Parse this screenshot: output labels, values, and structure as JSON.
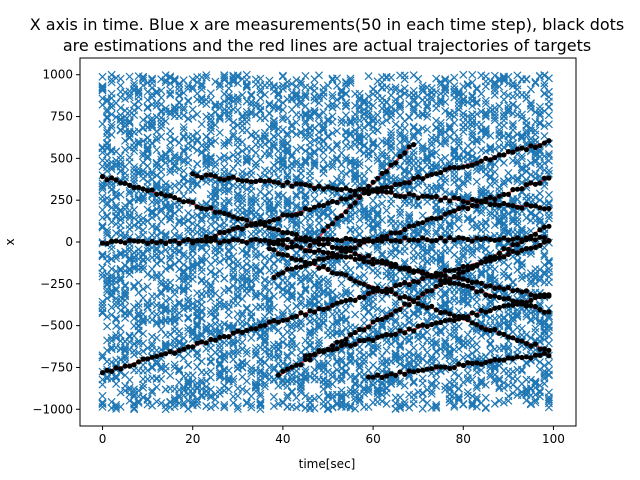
{
  "chart_data": {
    "type": "scatter",
    "title_line1": "X axis in time. Blue x are measurements(50 in each time step), black dots",
    "title_line2": "are estimations and the red lines are actual trajectories of targets",
    "xlabel": "time[sec]",
    "ylabel": "x",
    "xlim": [
      -5,
      105
    ],
    "ylim": [
      -1100,
      1100
    ],
    "x_ticks": [
      0,
      20,
      40,
      60,
      80,
      100
    ],
    "y_ticks": [
      -1000,
      -750,
      -500,
      -250,
      0,
      250,
      500,
      750,
      1000
    ],
    "grid": false,
    "legend": "none",
    "colors": {
      "measurements": "#1f77b4",
      "estimations": "#000000",
      "trajectories": "#d62728"
    },
    "measurements": {
      "name": "measurements",
      "marker": "x",
      "per_time_step": 50,
      "time_range": [
        0,
        99
      ],
      "x_range": [
        -1000,
        1000
      ]
    },
    "series": [
      {
        "x": [
          0,
          99
        ],
        "y": [
          -780,
          0
        ]
      },
      {
        "x": [
          0,
          99
        ],
        "y": [
          390,
          -420
        ]
      },
      {
        "x": [
          0,
          99
        ],
        "y": [
          0,
          20
        ]
      },
      {
        "x": [
          20,
          99
        ],
        "y": [
          400,
          200
        ]
      },
      {
        "x": [
          20,
          99
        ],
        "y": [
          0,
          600
        ]
      },
      {
        "x": [
          37,
          99
        ],
        "y": [
          -40,
          -650
        ]
      },
      {
        "x": [
          37,
          99
        ],
        "y": [
          0,
          -330
        ]
      },
      {
        "x": [
          38,
          99
        ],
        "y": [
          -200,
          380
        ]
      },
      {
        "x": [
          39,
          99
        ],
        "y": [
          -800,
          100
        ]
      },
      {
        "x": [
          45,
          99
        ],
        "y": [
          -680,
          -320
        ]
      },
      {
        "x": [
          45,
          69
        ],
        "y": [
          -50,
          590
        ]
      },
      {
        "x": [
          59,
          99
        ],
        "y": [
          -810,
          -670
        ]
      }
    ]
  }
}
